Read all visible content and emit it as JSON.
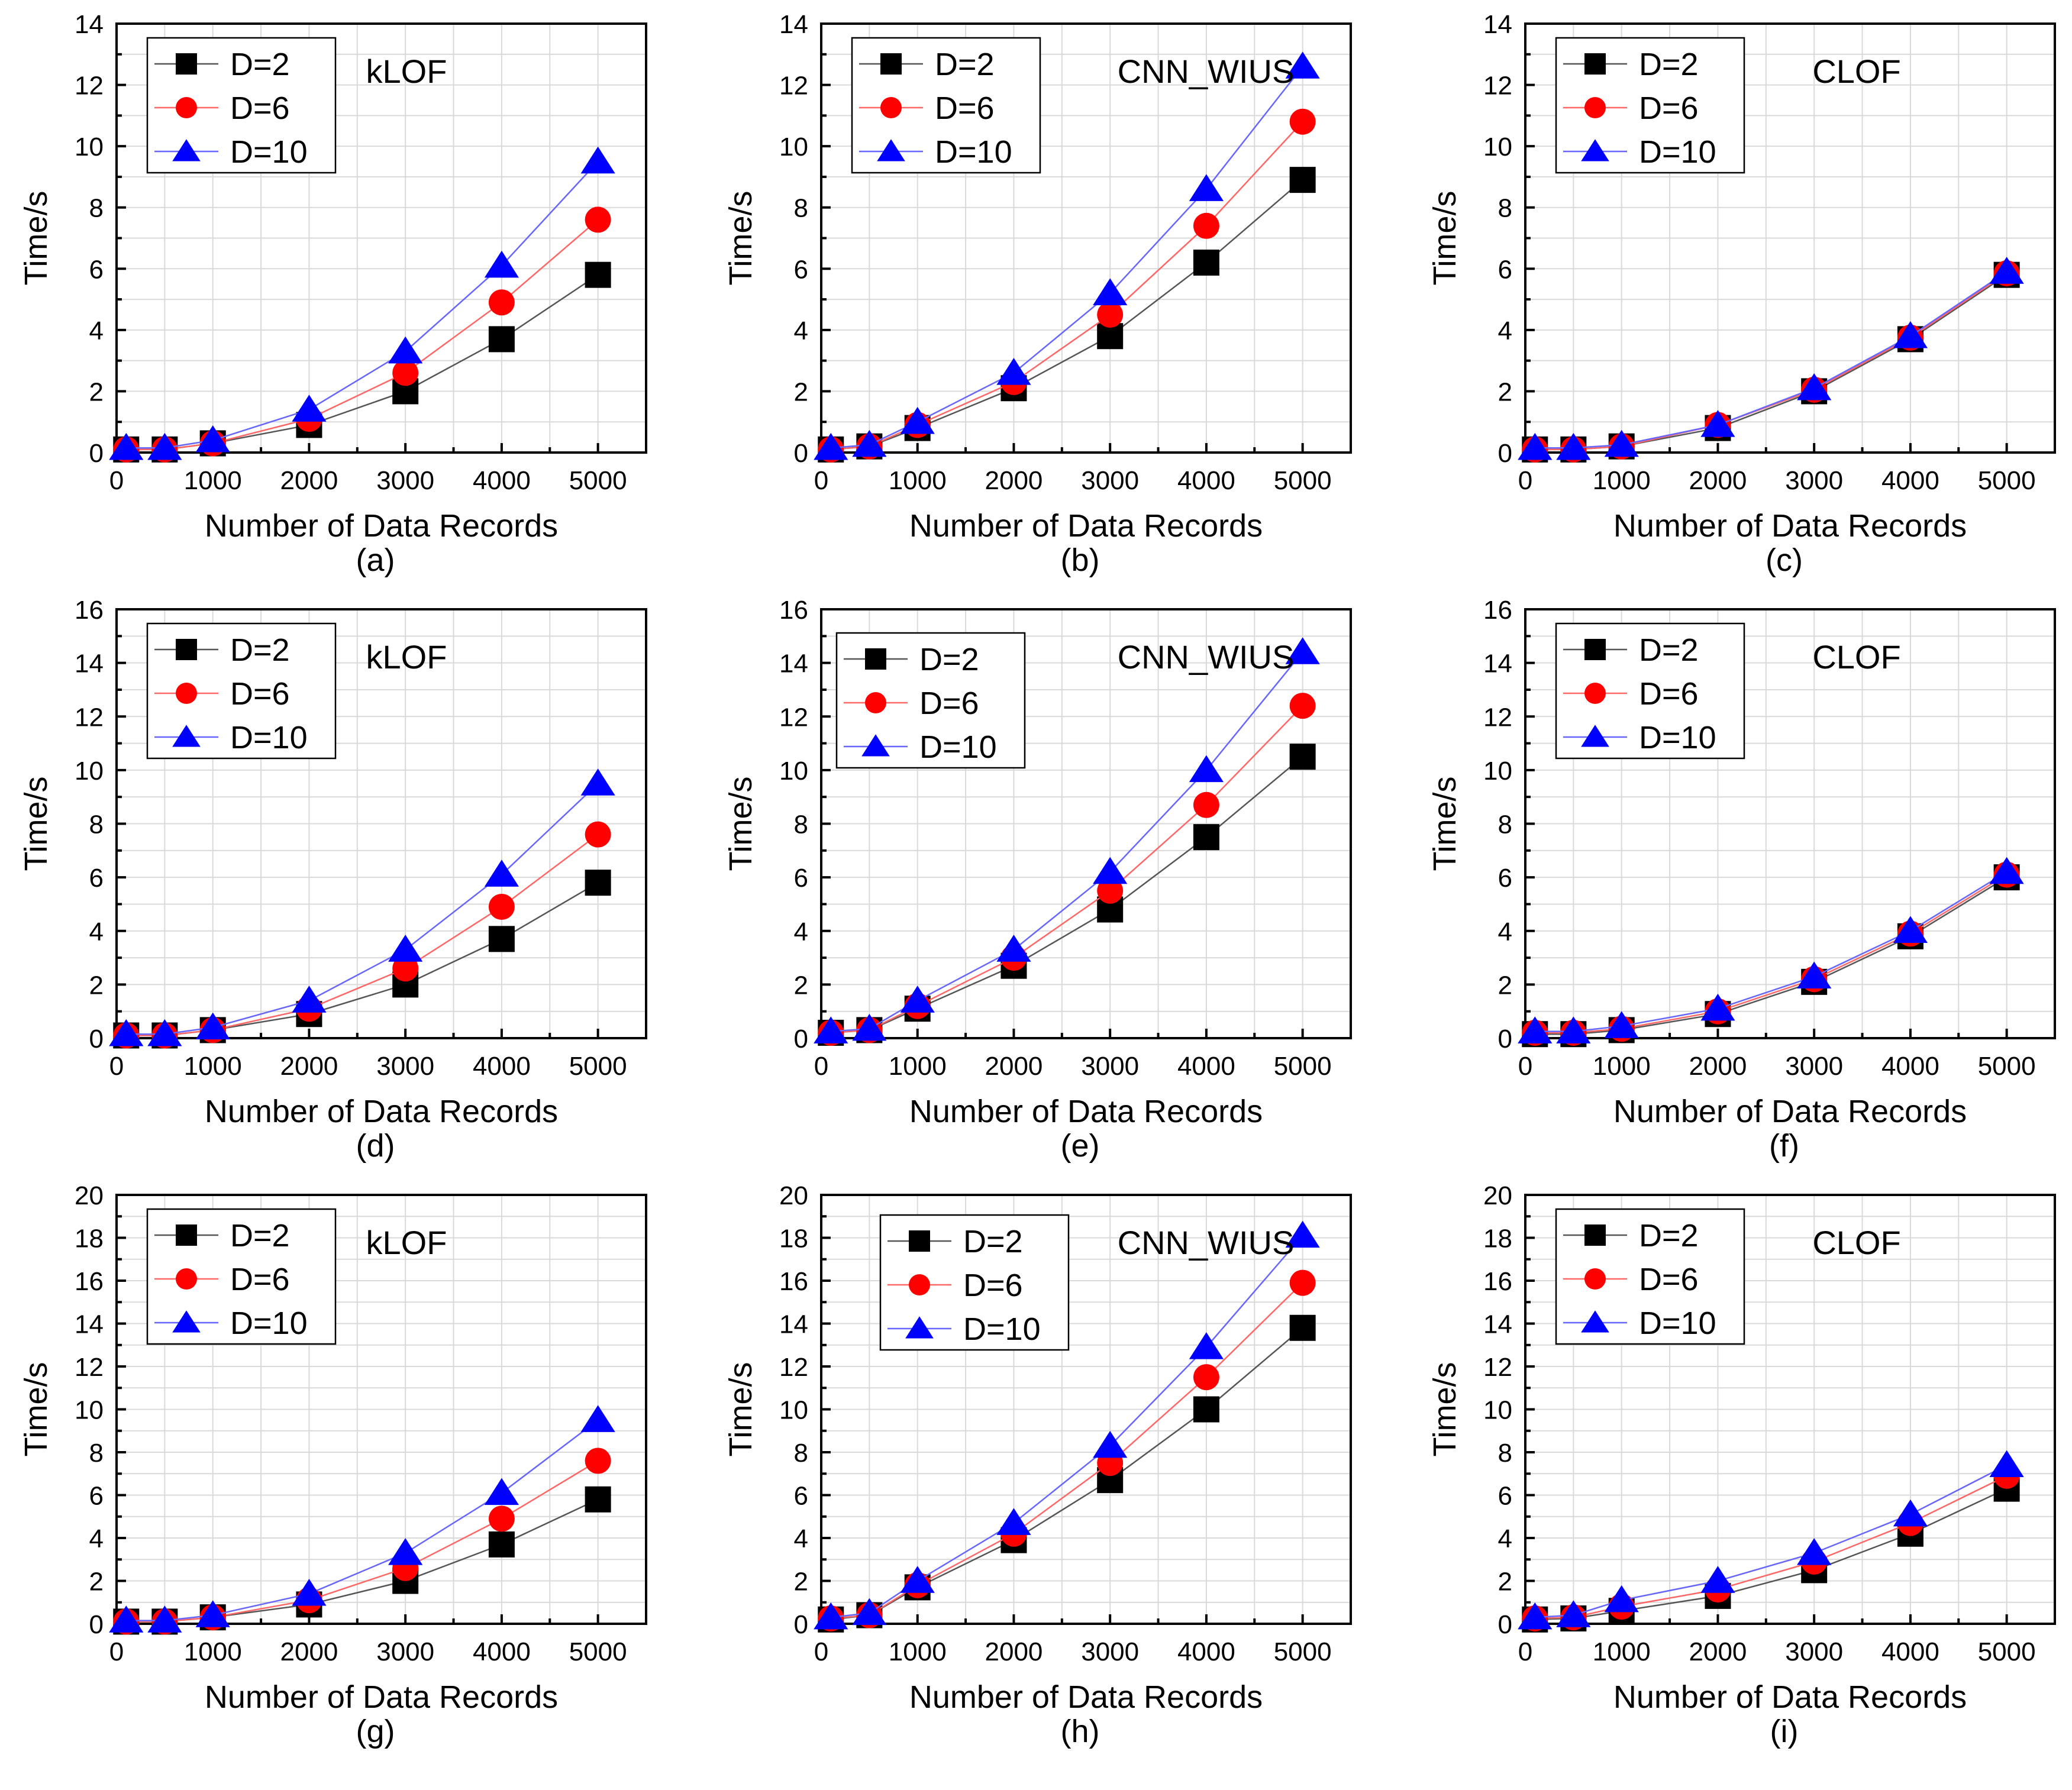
{
  "figure": {
    "xlabel": "Number of Data Records",
    "ylabel": "Time/s"
  },
  "colors": {
    "D=2": "#000000",
    "D=6": "#ff0000",
    "D=10": "#0000ff",
    "line_D=2": "#555555",
    "line_D=6": "#ff6666",
    "line_D=10": "#6666ff"
  },
  "chart_data": [
    {
      "type": "line",
      "panel": "(a)",
      "method": "kLOF",
      "xlabel": "Number of Data Records",
      "ylabel": "Time/s",
      "x": [
        100,
        500,
        1000,
        2000,
        3000,
        4000,
        5000
      ],
      "xticks": [
        0,
        1000,
        2000,
        3000,
        4000,
        5000
      ],
      "xlim": [
        0,
        5500
      ],
      "ylim": [
        0,
        14
      ],
      "yticks": [
        0,
        2,
        4,
        6,
        8,
        10,
        12,
        14
      ],
      "grid": true,
      "legend": "top-left",
      "series": [
        {
          "name": "D=2",
          "marker": "square",
          "values": [
            0.1,
            0.1,
            0.3,
            0.9,
            2.0,
            3.7,
            5.8
          ]
        },
        {
          "name": "D=6",
          "marker": "circle",
          "values": [
            0.1,
            0.1,
            0.3,
            1.1,
            2.6,
            4.9,
            7.6
          ]
        },
        {
          "name": "D=10",
          "marker": "triangle",
          "values": [
            0.15,
            0.15,
            0.4,
            1.4,
            3.3,
            6.1,
            9.5
          ]
        }
      ]
    },
    {
      "type": "line",
      "panel": "(b)",
      "method": "CNN_WIUS",
      "xlabel": "Number of Data Records",
      "ylabel": "Time/s",
      "x": [
        100,
        500,
        1000,
        2000,
        3000,
        4000,
        5000
      ],
      "xticks": [
        0,
        1000,
        2000,
        3000,
        4000,
        5000
      ],
      "xlim": [
        0,
        5500
      ],
      "ylim": [
        0,
        14
      ],
      "yticks": [
        0,
        2,
        4,
        6,
        8,
        10,
        12,
        14
      ],
      "grid": true,
      "legend": "top-left",
      "series": [
        {
          "name": "D=2",
          "marker": "square",
          "values": [
            0.1,
            0.2,
            0.8,
            2.1,
            3.8,
            6.2,
            8.9
          ]
        },
        {
          "name": "D=6",
          "marker": "circle",
          "values": [
            0.1,
            0.2,
            0.9,
            2.3,
            4.5,
            7.4,
            10.8
          ]
        },
        {
          "name": "D=10",
          "marker": "triangle",
          "values": [
            0.15,
            0.25,
            1.0,
            2.6,
            5.2,
            8.6,
            12.6
          ]
        }
      ]
    },
    {
      "type": "line",
      "panel": "(c)",
      "method": "CLOF",
      "xlabel": "Number of Data Records",
      "ylabel": "Time/s",
      "x": [
        100,
        500,
        1000,
        2000,
        3000,
        4000,
        5000
      ],
      "xticks": [
        0,
        1000,
        2000,
        3000,
        4000,
        5000
      ],
      "xlim": [
        0,
        5500
      ],
      "ylim": [
        0,
        14
      ],
      "yticks": [
        0,
        2,
        4,
        6,
        8,
        10,
        12,
        14
      ],
      "grid": true,
      "legend": "top-left",
      "series": [
        {
          "name": "D=2",
          "marker": "square",
          "values": [
            0.1,
            0.1,
            0.2,
            0.8,
            2.0,
            3.7,
            5.8
          ]
        },
        {
          "name": "D=6",
          "marker": "circle",
          "values": [
            0.1,
            0.1,
            0.2,
            0.9,
            2.05,
            3.75,
            5.85
          ]
        },
        {
          "name": "D=10",
          "marker": "triangle",
          "values": [
            0.15,
            0.15,
            0.25,
            0.9,
            2.1,
            3.8,
            5.9
          ]
        }
      ]
    },
    {
      "type": "line",
      "panel": "(d)",
      "method": "kLOF",
      "xlabel": "Number of Data Records",
      "ylabel": "Time/s",
      "x": [
        100,
        500,
        1000,
        2000,
        3000,
        4000,
        5000
      ],
      "xticks": [
        0,
        1000,
        2000,
        3000,
        4000,
        5000
      ],
      "xlim": [
        0,
        5500
      ],
      "ylim": [
        0,
        16
      ],
      "yticks": [
        0,
        2,
        4,
        6,
        8,
        10,
        12,
        14,
        16
      ],
      "grid": true,
      "legend": "top-left",
      "series": [
        {
          "name": "D=2",
          "marker": "square",
          "values": [
            0.1,
            0.1,
            0.3,
            0.9,
            2.0,
            3.7,
            5.8
          ]
        },
        {
          "name": "D=6",
          "marker": "circle",
          "values": [
            0.1,
            0.1,
            0.3,
            1.1,
            2.6,
            4.9,
            7.6
          ]
        },
        {
          "name": "D=10",
          "marker": "triangle",
          "values": [
            0.15,
            0.15,
            0.4,
            1.4,
            3.3,
            6.1,
            9.5
          ]
        }
      ]
    },
    {
      "type": "line",
      "panel": "(e)",
      "method": "CNN_WIUS",
      "xlabel": "Number of Data Records",
      "ylabel": "Time/s",
      "x": [
        100,
        500,
        1000,
        2000,
        3000,
        4000,
        5000
      ],
      "xticks": [
        0,
        1000,
        2000,
        3000,
        4000,
        5000
      ],
      "xlim": [
        0,
        5500
      ],
      "ylim": [
        0,
        16
      ],
      "yticks": [
        0,
        2,
        4,
        6,
        8,
        10,
        12,
        14,
        16
      ],
      "grid": true,
      "legend": "top-left",
      "series": [
        {
          "name": "D=2",
          "marker": "square",
          "values": [
            0.2,
            0.3,
            1.1,
            2.7,
            4.8,
            7.5,
            10.5
          ]
        },
        {
          "name": "D=6",
          "marker": "circle",
          "values": [
            0.2,
            0.3,
            1.2,
            3.0,
            5.5,
            8.7,
            12.4
          ]
        },
        {
          "name": "D=10",
          "marker": "triangle",
          "values": [
            0.25,
            0.35,
            1.4,
            3.3,
            6.2,
            10.0,
            14.4
          ]
        }
      ]
    },
    {
      "type": "line",
      "panel": "(f)",
      "method": "CLOF",
      "xlabel": "Number of Data Records",
      "ylabel": "Time/s",
      "x": [
        100,
        500,
        1000,
        2000,
        3000,
        4000,
        5000
      ],
      "xticks": [
        0,
        1000,
        2000,
        3000,
        4000,
        5000
      ],
      "xlim": [
        0,
        5500
      ],
      "ylim": [
        0,
        16
      ],
      "yticks": [
        0,
        2,
        4,
        6,
        8,
        10,
        12,
        14,
        16
      ],
      "grid": true,
      "legend": "top-left",
      "series": [
        {
          "name": "D=2",
          "marker": "square",
          "values": [
            0.15,
            0.15,
            0.3,
            0.9,
            2.1,
            3.8,
            6.0
          ]
        },
        {
          "name": "D=6",
          "marker": "circle",
          "values": [
            0.2,
            0.2,
            0.35,
            1.0,
            2.2,
            3.9,
            6.1
          ]
        },
        {
          "name": "D=10",
          "marker": "triangle",
          "values": [
            0.25,
            0.25,
            0.45,
            1.1,
            2.3,
            4.0,
            6.2
          ]
        }
      ]
    },
    {
      "type": "line",
      "panel": "(g)",
      "method": "kLOF",
      "xlabel": "Number of Data Records",
      "ylabel": "Time/s",
      "x": [
        100,
        500,
        1000,
        2000,
        3000,
        4000,
        5000
      ],
      "xticks": [
        0,
        1000,
        2000,
        3000,
        4000,
        5000
      ],
      "xlim": [
        0,
        5500
      ],
      "ylim": [
        0,
        20
      ],
      "yticks": [
        0,
        2,
        4,
        6,
        8,
        10,
        12,
        14,
        16,
        18,
        20
      ],
      "grid": true,
      "legend": "top-left",
      "series": [
        {
          "name": "D=2",
          "marker": "square",
          "values": [
            0.1,
            0.1,
            0.3,
            0.9,
            2.0,
            3.7,
            5.8
          ]
        },
        {
          "name": "D=6",
          "marker": "circle",
          "values": [
            0.1,
            0.1,
            0.3,
            1.1,
            2.6,
            4.9,
            7.6
          ]
        },
        {
          "name": "D=10",
          "marker": "triangle",
          "values": [
            0.15,
            0.15,
            0.4,
            1.4,
            3.3,
            6.1,
            9.5
          ]
        }
      ]
    },
    {
      "type": "line",
      "panel": "(h)",
      "method": "CNN_WIUS",
      "xlabel": "Number of Data Records",
      "ylabel": "Time/s",
      "x": [
        100,
        500,
        1000,
        2000,
        3000,
        4000,
        5000
      ],
      "xticks": [
        0,
        1000,
        2000,
        3000,
        4000,
        5000
      ],
      "xlim": [
        0,
        5500
      ],
      "ylim": [
        0,
        20
      ],
      "yticks": [
        0,
        2,
        4,
        6,
        8,
        10,
        12,
        14,
        16,
        18,
        20
      ],
      "grid": true,
      "legend": "top-left",
      "series": [
        {
          "name": "D=2",
          "marker": "square",
          "values": [
            0.2,
            0.4,
            1.7,
            3.9,
            6.7,
            10.0,
            13.8
          ]
        },
        {
          "name": "D=6",
          "marker": "circle",
          "values": [
            0.25,
            0.4,
            1.8,
            4.2,
            7.5,
            11.5,
            15.9
          ]
        },
        {
          "name": "D=10",
          "marker": "triangle",
          "values": [
            0.3,
            0.5,
            2.0,
            4.7,
            8.3,
            12.9,
            18.1
          ]
        }
      ]
    },
    {
      "type": "line",
      "panel": "(i)",
      "method": "CLOF",
      "xlabel": "Number of Data Records",
      "ylabel": "Time/s",
      "x": [
        100,
        500,
        1000,
        2000,
        3000,
        4000,
        5000
      ],
      "xticks": [
        0,
        1000,
        2000,
        3000,
        4000,
        5000
      ],
      "xlim": [
        0,
        5500
      ],
      "ylim": [
        0,
        20
      ],
      "yticks": [
        0,
        2,
        4,
        6,
        8,
        10,
        12,
        14,
        16,
        18,
        20
      ],
      "grid": true,
      "legend": "top-left",
      "series": [
        {
          "name": "D=2",
          "marker": "square",
          "values": [
            0.2,
            0.25,
            0.6,
            1.3,
            2.5,
            4.2,
            6.3
          ]
        },
        {
          "name": "D=6",
          "marker": "circle",
          "values": [
            0.25,
            0.3,
            0.8,
            1.6,
            2.9,
            4.7,
            6.9
          ]
        },
        {
          "name": "D=10",
          "marker": "triangle",
          "values": [
            0.3,
            0.4,
            1.1,
            2.0,
            3.3,
            5.1,
            7.4
          ]
        }
      ]
    }
  ]
}
